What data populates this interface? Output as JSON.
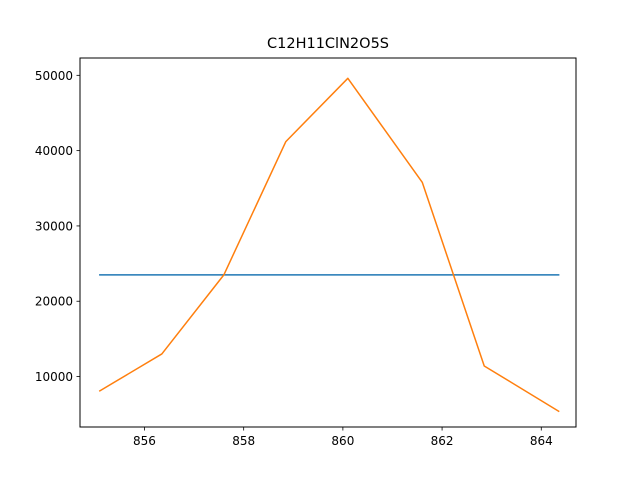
{
  "chart_data": {
    "type": "line",
    "title": "C12H11ClN2O5S",
    "xlabel": "",
    "ylabel": "",
    "xlim": [
      854.7,
      864.7
    ],
    "ylim": [
      3300,
      52300
    ],
    "x_ticks": [
      856,
      858,
      860,
      862,
      864
    ],
    "y_ticks": [
      10000,
      20000,
      30000,
      40000,
      50000
    ],
    "grid": false,
    "series": [
      {
        "color": "#1f77b4",
        "x": [
          855.1,
          864.35
        ],
        "y": [
          23500,
          23500
        ]
      },
      {
        "color": "#ff7f0e",
        "x": [
          855.1,
          856.35,
          857.6,
          858.85,
          860.1,
          861.6,
          862.85,
          864.35
        ],
        "y": [
          8100,
          13000,
          23500,
          41200,
          49600,
          35800,
          11400,
          5400
        ]
      }
    ]
  }
}
